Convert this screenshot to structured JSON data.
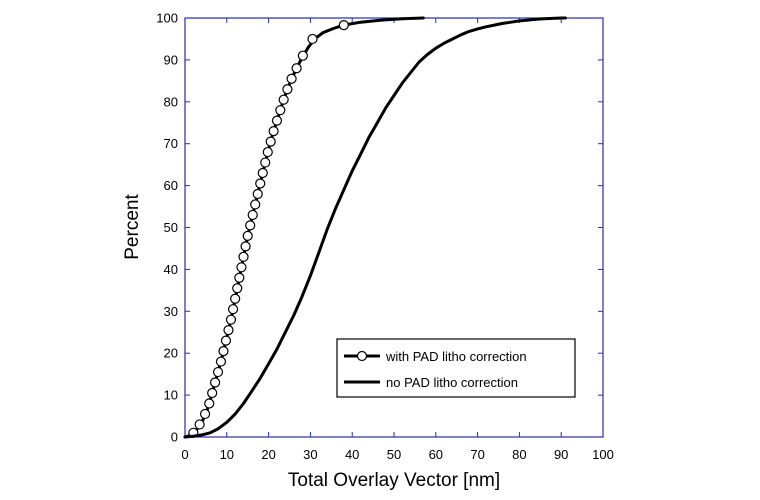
{
  "chart_data": {
    "type": "line",
    "title": "",
    "xlabel": "Total Overlay Vector [nm]",
    "ylabel": "Percent",
    "xlim": [
      0,
      100
    ],
    "ylim": [
      0,
      100
    ],
    "xticks": [
      0,
      10,
      20,
      30,
      40,
      50,
      60,
      70,
      80,
      90,
      100
    ],
    "yticks": [
      0,
      10,
      20,
      30,
      40,
      50,
      60,
      70,
      80,
      90,
      100
    ],
    "grid": false,
    "legend_position": "bottom-right",
    "series": [
      {
        "name": "with PAD litho correction",
        "marker": "circle",
        "color": "#000000",
        "x": [
          0,
          1,
          2,
          3,
          4,
          5,
          5.8,
          6.5,
          7.2,
          7.9,
          8.6,
          9.2,
          9.8,
          10.4,
          11,
          11.5,
          12,
          12.5,
          13,
          13.5,
          14,
          14.5,
          15,
          15.6,
          16.2,
          16.8,
          17.4,
          18,
          18.6,
          19.2,
          19.8,
          20.5,
          21.2,
          22,
          22.8,
          23.6,
          24.5,
          25.5,
          26.7,
          28,
          29.5,
          31,
          33,
          35.5,
          38,
          42,
          47,
          52,
          57
        ],
        "y": [
          0,
          0.3,
          1,
          2,
          3.5,
          5.5,
          8,
          10.5,
          13,
          15.5,
          18,
          20.5,
          23,
          25.5,
          28,
          30.5,
          33,
          35.5,
          38,
          40.5,
          43,
          45.5,
          48,
          50.5,
          53,
          55.5,
          58,
          60.5,
          63,
          65.5,
          68,
          70.5,
          73,
          75.5,
          78,
          80.5,
          83,
          85.5,
          88,
          90.5,
          93,
          95,
          96.5,
          97.5,
          98.3,
          99,
          99.5,
          99.8,
          100
        ],
        "markers_x": [
          2,
          3.5,
          4.8,
          5.8,
          6.5,
          7.2,
          7.9,
          8.6,
          9.2,
          9.8,
          10.4,
          11,
          11.5,
          12,
          12.5,
          13,
          13.5,
          14,
          14.5,
          15,
          15.6,
          16.2,
          16.8,
          17.4,
          18,
          18.6,
          19.2,
          19.8,
          20.5,
          21.2,
          22,
          22.8,
          23.6,
          24.5,
          25.5,
          26.7,
          28.2,
          30.5,
          38
        ],
        "markers_y": [
          1,
          3,
          5.5,
          8,
          10.5,
          13,
          15.5,
          18,
          20.5,
          23,
          25.5,
          28,
          30.5,
          33,
          35.5,
          38,
          40.5,
          43,
          45.5,
          48,
          50.5,
          53,
          55.5,
          58,
          60.5,
          63,
          65.5,
          68,
          70.5,
          73,
          75.5,
          78,
          80.5,
          83,
          85.5,
          88,
          91,
          95,
          98.3
        ]
      },
      {
        "name": "no PAD litho correction",
        "marker": "none",
        "color": "#000000",
        "x": [
          0,
          2,
          4,
          6,
          8,
          10,
          12,
          14,
          16,
          18,
          20,
          22,
          24,
          26,
          28,
          30,
          32,
          34,
          36,
          38,
          40,
          42,
          44,
          46,
          48,
          50,
          52,
          54,
          56,
          58,
          60,
          62,
          64,
          66,
          68,
          70,
          72,
          74,
          76,
          78,
          80,
          82,
          84,
          86,
          88,
          90,
          91
        ],
        "y": [
          0,
          0.2,
          0.5,
          1,
          2,
          3.5,
          5.5,
          8,
          11,
          14,
          17.5,
          21,
          25,
          29,
          33.5,
          38.5,
          44,
          49.5,
          54.5,
          59,
          63.5,
          67.5,
          71.5,
          75,
          78.5,
          81.5,
          84.5,
          87,
          89.5,
          91.3,
          92.8,
          94,
          95,
          96,
          96.8,
          97.4,
          97.9,
          98.3,
          98.7,
          99,
          99.3,
          99.5,
          99.7,
          99.8,
          99.9,
          100,
          100
        ]
      }
    ]
  }
}
